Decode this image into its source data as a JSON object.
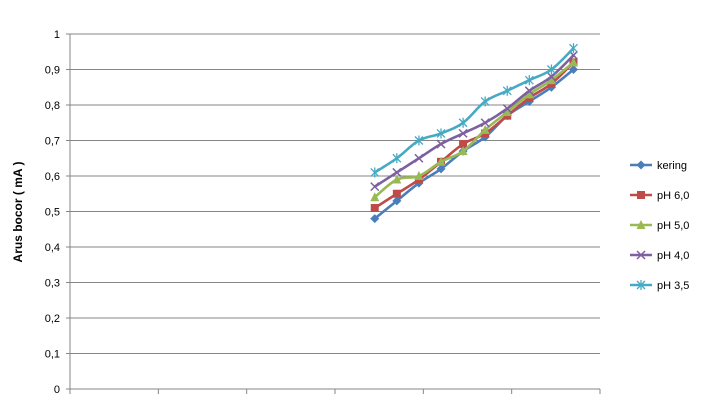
{
  "chart_data": {
    "type": "line",
    "title": "",
    "xlabel": "",
    "ylabel": "Arus bocor ( mA )",
    "ylim": [
      0,
      1
    ],
    "y_ticks": [
      "0",
      "0,1",
      "0,2",
      "0,3",
      "0,4",
      "0,5",
      "0,6",
      "0,7",
      "0,8",
      "0,9",
      "1"
    ],
    "x_category_count": 6,
    "grid": "horizontal",
    "legend_position": "right",
    "series": [
      {
        "name": "kering",
        "color": "#4a7ebb",
        "marker": "diamond",
        "x": [
          3.45,
          3.7,
          3.95,
          4.2,
          4.45,
          4.7,
          4.95,
          5.2,
          5.45,
          5.7
        ],
        "values": [
          0.48,
          0.53,
          0.58,
          0.62,
          0.67,
          0.71,
          0.77,
          0.81,
          0.85,
          0.9
        ]
      },
      {
        "name": "pH 6,0",
        "color": "#be4b48",
        "marker": "square",
        "x": [
          3.45,
          3.7,
          3.95,
          4.2,
          4.45,
          4.7,
          4.95,
          5.2,
          5.45,
          5.7
        ],
        "values": [
          0.51,
          0.55,
          0.59,
          0.64,
          0.69,
          0.72,
          0.77,
          0.82,
          0.86,
          0.92
        ]
      },
      {
        "name": "pH 5,0",
        "color": "#98b954",
        "marker": "triangle",
        "x": [
          3.45,
          3.7,
          3.95,
          4.2,
          4.45,
          4.7,
          4.95,
          5.2,
          5.45,
          5.7
        ],
        "values": [
          0.54,
          0.59,
          0.6,
          0.64,
          0.67,
          0.73,
          0.78,
          0.83,
          0.87,
          0.92
        ]
      },
      {
        "name": "pH 4,0",
        "color": "#7d60a0",
        "marker": "x",
        "x": [
          3.45,
          3.7,
          3.95,
          4.2,
          4.45,
          4.7,
          4.95,
          5.2,
          5.45,
          5.7
        ],
        "values": [
          0.57,
          0.61,
          0.65,
          0.69,
          0.72,
          0.75,
          0.79,
          0.84,
          0.88,
          0.94
        ]
      },
      {
        "name": "pH 3,5",
        "color": "#46aac5",
        "marker": "star",
        "x": [
          3.45,
          3.7,
          3.95,
          4.2,
          4.45,
          4.7,
          4.95,
          5.2,
          5.45,
          5.7
        ],
        "values": [
          0.61,
          0.65,
          0.7,
          0.72,
          0.75,
          0.81,
          0.84,
          0.87,
          0.9,
          0.96
        ]
      }
    ]
  }
}
